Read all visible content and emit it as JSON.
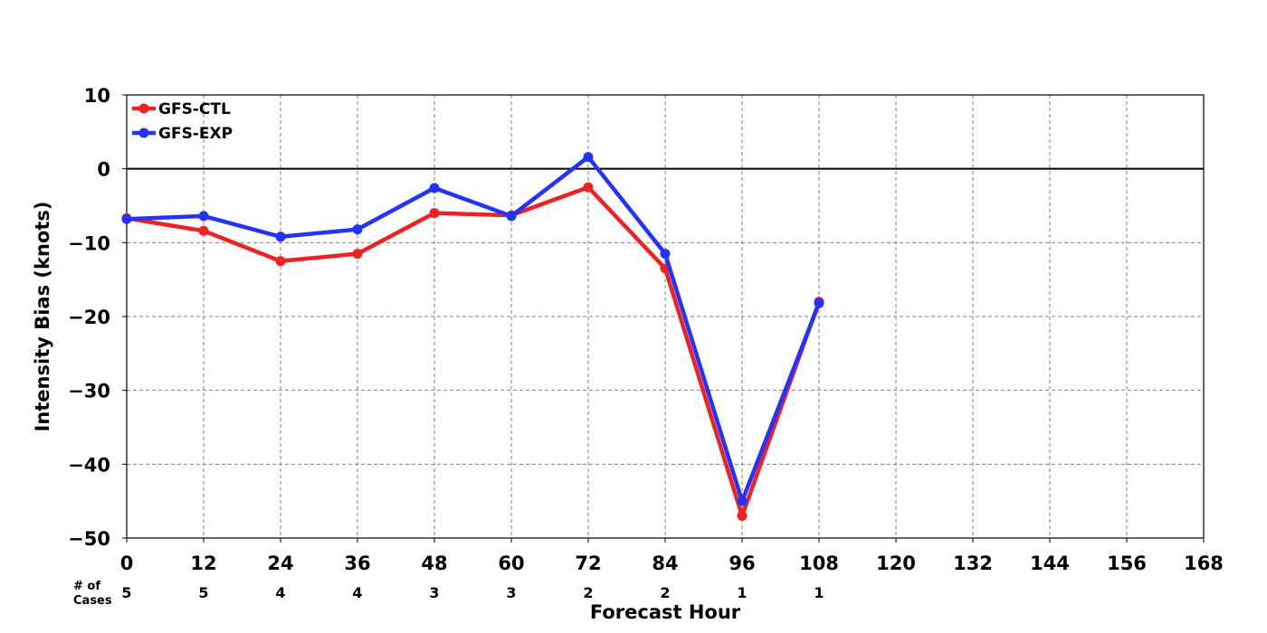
{
  "chart_data": {
    "type": "line",
    "title": "",
    "xlabel": "Forecast Hour",
    "ylabel": "Intensity Bias (knots)",
    "xlim": [
      0,
      168
    ],
    "ylim": [
      -50,
      10
    ],
    "x_ticks": [
      "0",
      "12",
      "24",
      "36",
      "48",
      "60",
      "72",
      "84",
      "96",
      "108",
      "120",
      "132",
      "144",
      "156",
      "168"
    ],
    "y_ticks": [
      "10",
      "0",
      "−10",
      "−20",
      "−30",
      "−40",
      "−50"
    ],
    "cases_label_line1": "# of",
    "cases_label_line2": "Cases",
    "cases": [
      "5",
      "5",
      "4",
      "4",
      "3",
      "3",
      "2",
      "2",
      "1",
      "1"
    ],
    "x": [
      0,
      12,
      24,
      36,
      48,
      60,
      72,
      84,
      96,
      108
    ],
    "series": [
      {
        "name": "GFS-CTL",
        "color": "#ee2222",
        "values": [
          -6.7,
          -8.4,
          -12.5,
          -11.5,
          -6.0,
          -6.3,
          -2.5,
          -13.5,
          -47.0,
          -18.0
        ]
      },
      {
        "name": "GFS-EXP",
        "color": "#2233ff",
        "values": [
          -6.8,
          -6.4,
          -9.2,
          -8.2,
          -2.6,
          -6.4,
          1.6,
          -11.5,
          -45.0,
          -18.2
        ]
      }
    ],
    "grid": true,
    "zero_line": true,
    "legend_position": "top-left"
  }
}
